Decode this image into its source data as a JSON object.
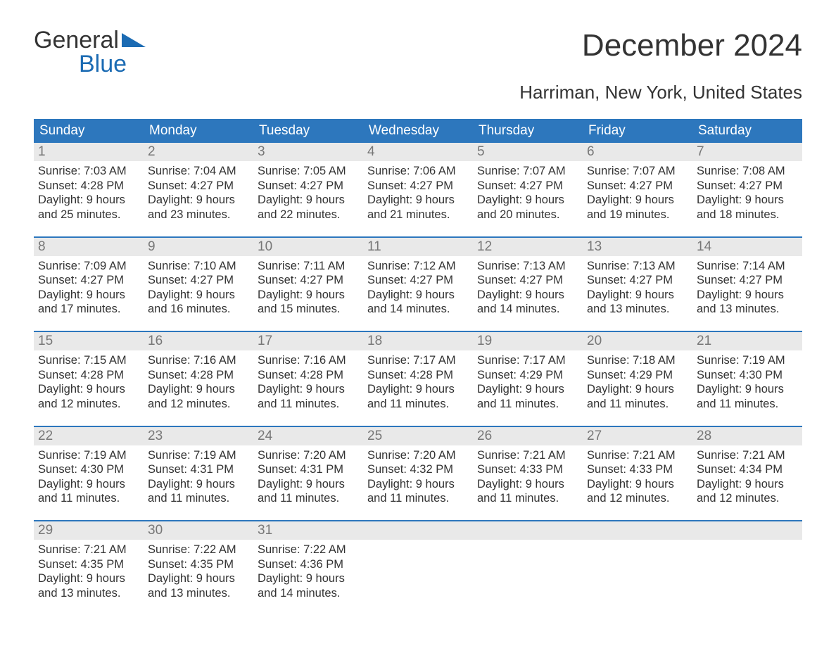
{
  "logo": {
    "word1": "General",
    "word2": "Blue"
  },
  "title": "December 2024",
  "subtitle": "Harriman, New York, United States",
  "colors": {
    "header_bg": "#2d77bd",
    "header_text": "#ffffff",
    "accent": "#1b6bb3",
    "daynum_bg": "#e9e9e9",
    "daynum_text": "#777777",
    "body_text": "#333333",
    "page_bg": "#ffffff"
  },
  "typography": {
    "title_fontsize": 44,
    "subtitle_fontsize": 26,
    "weekday_fontsize": 19,
    "daynum_fontsize": 19,
    "body_fontsize": 16.5,
    "font_family": "Arial"
  },
  "weekdays": [
    "Sunday",
    "Monday",
    "Tuesday",
    "Wednesday",
    "Thursday",
    "Friday",
    "Saturday"
  ],
  "weeks": [
    [
      {
        "n": "1",
        "sunrise": "Sunrise: 7:03 AM",
        "sunset": "Sunset: 4:28 PM",
        "d1": "Daylight: 9 hours",
        "d2": "and 25 minutes."
      },
      {
        "n": "2",
        "sunrise": "Sunrise: 7:04 AM",
        "sunset": "Sunset: 4:27 PM",
        "d1": "Daylight: 9 hours",
        "d2": "and 23 minutes."
      },
      {
        "n": "3",
        "sunrise": "Sunrise: 7:05 AM",
        "sunset": "Sunset: 4:27 PM",
        "d1": "Daylight: 9 hours",
        "d2": "and 22 minutes."
      },
      {
        "n": "4",
        "sunrise": "Sunrise: 7:06 AM",
        "sunset": "Sunset: 4:27 PM",
        "d1": "Daylight: 9 hours",
        "d2": "and 21 minutes."
      },
      {
        "n": "5",
        "sunrise": "Sunrise: 7:07 AM",
        "sunset": "Sunset: 4:27 PM",
        "d1": "Daylight: 9 hours",
        "d2": "and 20 minutes."
      },
      {
        "n": "6",
        "sunrise": "Sunrise: 7:07 AM",
        "sunset": "Sunset: 4:27 PM",
        "d1": "Daylight: 9 hours",
        "d2": "and 19 minutes."
      },
      {
        "n": "7",
        "sunrise": "Sunrise: 7:08 AM",
        "sunset": "Sunset: 4:27 PM",
        "d1": "Daylight: 9 hours",
        "d2": "and 18 minutes."
      }
    ],
    [
      {
        "n": "8",
        "sunrise": "Sunrise: 7:09 AM",
        "sunset": "Sunset: 4:27 PM",
        "d1": "Daylight: 9 hours",
        "d2": "and 17 minutes."
      },
      {
        "n": "9",
        "sunrise": "Sunrise: 7:10 AM",
        "sunset": "Sunset: 4:27 PM",
        "d1": "Daylight: 9 hours",
        "d2": "and 16 minutes."
      },
      {
        "n": "10",
        "sunrise": "Sunrise: 7:11 AM",
        "sunset": "Sunset: 4:27 PM",
        "d1": "Daylight: 9 hours",
        "d2": "and 15 minutes."
      },
      {
        "n": "11",
        "sunrise": "Sunrise: 7:12 AM",
        "sunset": "Sunset: 4:27 PM",
        "d1": "Daylight: 9 hours",
        "d2": "and 14 minutes."
      },
      {
        "n": "12",
        "sunrise": "Sunrise: 7:13 AM",
        "sunset": "Sunset: 4:27 PM",
        "d1": "Daylight: 9 hours",
        "d2": "and 14 minutes."
      },
      {
        "n": "13",
        "sunrise": "Sunrise: 7:13 AM",
        "sunset": "Sunset: 4:27 PM",
        "d1": "Daylight: 9 hours",
        "d2": "and 13 minutes."
      },
      {
        "n": "14",
        "sunrise": "Sunrise: 7:14 AM",
        "sunset": "Sunset: 4:27 PM",
        "d1": "Daylight: 9 hours",
        "d2": "and 13 minutes."
      }
    ],
    [
      {
        "n": "15",
        "sunrise": "Sunrise: 7:15 AM",
        "sunset": "Sunset: 4:28 PM",
        "d1": "Daylight: 9 hours",
        "d2": "and 12 minutes."
      },
      {
        "n": "16",
        "sunrise": "Sunrise: 7:16 AM",
        "sunset": "Sunset: 4:28 PM",
        "d1": "Daylight: 9 hours",
        "d2": "and 12 minutes."
      },
      {
        "n": "17",
        "sunrise": "Sunrise: 7:16 AM",
        "sunset": "Sunset: 4:28 PM",
        "d1": "Daylight: 9 hours",
        "d2": "and 11 minutes."
      },
      {
        "n": "18",
        "sunrise": "Sunrise: 7:17 AM",
        "sunset": "Sunset: 4:28 PM",
        "d1": "Daylight: 9 hours",
        "d2": "and 11 minutes."
      },
      {
        "n": "19",
        "sunrise": "Sunrise: 7:17 AM",
        "sunset": "Sunset: 4:29 PM",
        "d1": "Daylight: 9 hours",
        "d2": "and 11 minutes."
      },
      {
        "n": "20",
        "sunrise": "Sunrise: 7:18 AM",
        "sunset": "Sunset: 4:29 PM",
        "d1": "Daylight: 9 hours",
        "d2": "and 11 minutes."
      },
      {
        "n": "21",
        "sunrise": "Sunrise: 7:19 AM",
        "sunset": "Sunset: 4:30 PM",
        "d1": "Daylight: 9 hours",
        "d2": "and 11 minutes."
      }
    ],
    [
      {
        "n": "22",
        "sunrise": "Sunrise: 7:19 AM",
        "sunset": "Sunset: 4:30 PM",
        "d1": "Daylight: 9 hours",
        "d2": "and 11 minutes."
      },
      {
        "n": "23",
        "sunrise": "Sunrise: 7:19 AM",
        "sunset": "Sunset: 4:31 PM",
        "d1": "Daylight: 9 hours",
        "d2": "and 11 minutes."
      },
      {
        "n": "24",
        "sunrise": "Sunrise: 7:20 AM",
        "sunset": "Sunset: 4:31 PM",
        "d1": "Daylight: 9 hours",
        "d2": "and 11 minutes."
      },
      {
        "n": "25",
        "sunrise": "Sunrise: 7:20 AM",
        "sunset": "Sunset: 4:32 PM",
        "d1": "Daylight: 9 hours",
        "d2": "and 11 minutes."
      },
      {
        "n": "26",
        "sunrise": "Sunrise: 7:21 AM",
        "sunset": "Sunset: 4:33 PM",
        "d1": "Daylight: 9 hours",
        "d2": "and 11 minutes."
      },
      {
        "n": "27",
        "sunrise": "Sunrise: 7:21 AM",
        "sunset": "Sunset: 4:33 PM",
        "d1": "Daylight: 9 hours",
        "d2": "and 12 minutes."
      },
      {
        "n": "28",
        "sunrise": "Sunrise: 7:21 AM",
        "sunset": "Sunset: 4:34 PM",
        "d1": "Daylight: 9 hours",
        "d2": "and 12 minutes."
      }
    ],
    [
      {
        "n": "29",
        "sunrise": "Sunrise: 7:21 AM",
        "sunset": "Sunset: 4:35 PM",
        "d1": "Daylight: 9 hours",
        "d2": "and 13 minutes."
      },
      {
        "n": "30",
        "sunrise": "Sunrise: 7:22 AM",
        "sunset": "Sunset: 4:35 PM",
        "d1": "Daylight: 9 hours",
        "d2": "and 13 minutes."
      },
      {
        "n": "31",
        "sunrise": "Sunrise: 7:22 AM",
        "sunset": "Sunset: 4:36 PM",
        "d1": "Daylight: 9 hours",
        "d2": "and 14 minutes."
      },
      {
        "empty": true
      },
      {
        "empty": true
      },
      {
        "empty": true
      },
      {
        "empty": true
      }
    ]
  ]
}
